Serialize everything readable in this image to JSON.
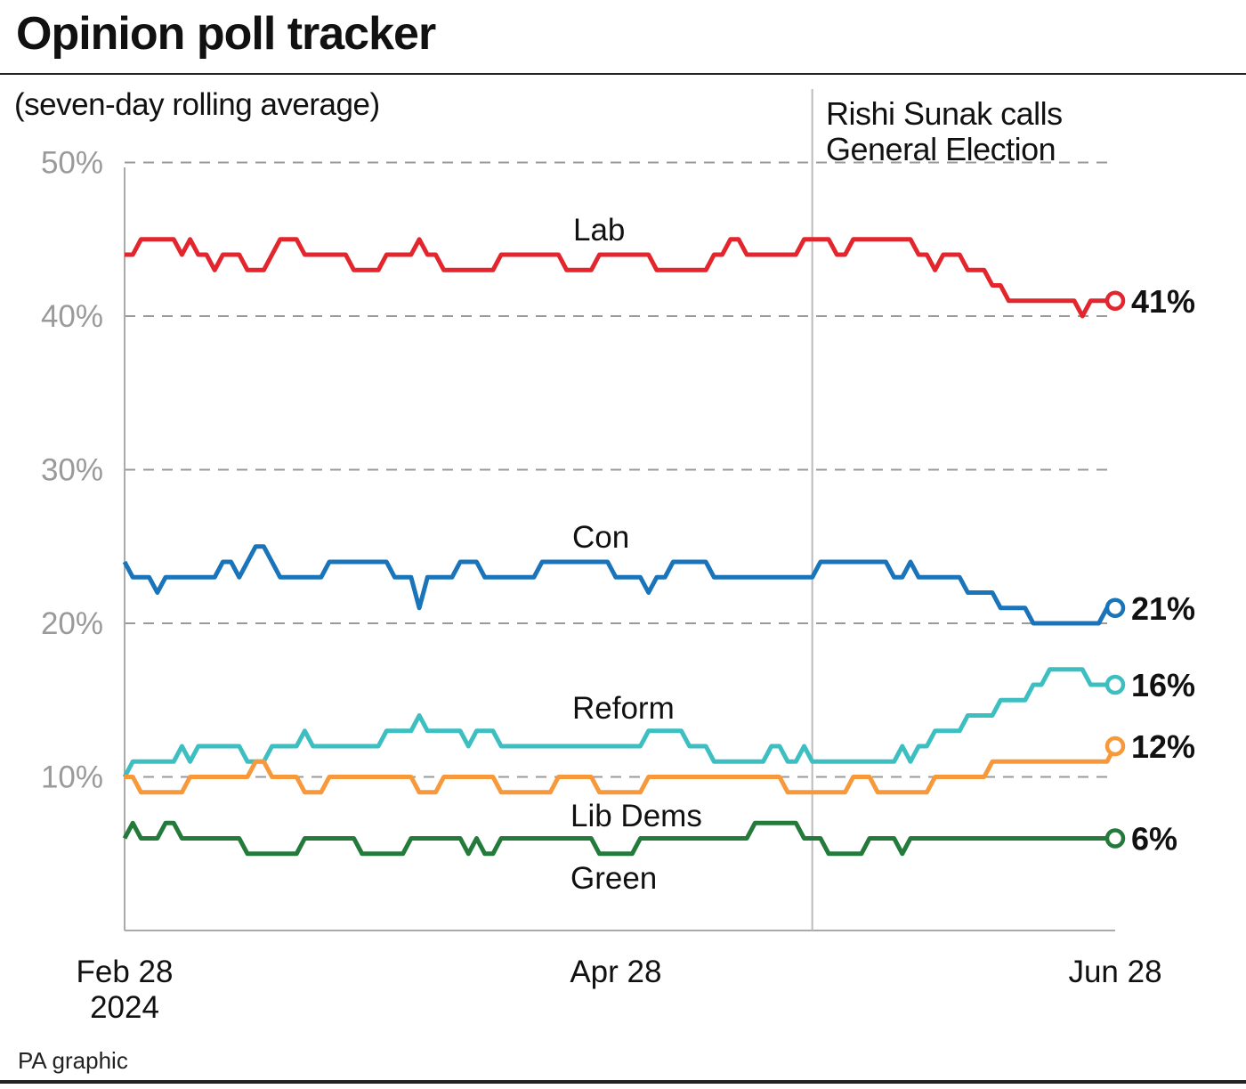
{
  "title": "Opinion poll tracker",
  "subtitle": "(seven-day rolling average)",
  "source": "PA graphic",
  "chart_data": {
    "type": "line",
    "title": "Opinion poll tracker",
    "subtitle": "(seven-day rolling average)",
    "xlabel": "",
    "ylabel": "",
    "ylim": [
      0,
      50
    ],
    "yticks": [
      10,
      20,
      30,
      40,
      50
    ],
    "ytick_labels": [
      "10%",
      "20%",
      "30%",
      "40%",
      "50%"
    ],
    "xlim": [
      "2024-02-28",
      "2024-06-28"
    ],
    "xticks": [
      {
        "date": "2024-02-28",
        "label": [
          "Feb 28",
          "2024"
        ]
      },
      {
        "date": "2024-04-28",
        "label": [
          "Apr 28"
        ]
      },
      {
        "date": "2024-06-28",
        "label": [
          "Jun 28"
        ]
      }
    ],
    "grid": "horizontal dashed",
    "legend": "direct labels on lines",
    "annotation": {
      "date": "2024-05-22",
      "text": [
        "Rishi Sunak calls",
        "General Election"
      ]
    },
    "x": [
      "2024-02-28",
      "2024-02-29",
      "2024-03-01",
      "2024-03-02",
      "2024-03-03",
      "2024-03-04",
      "2024-03-05",
      "2024-03-06",
      "2024-03-07",
      "2024-03-08",
      "2024-03-09",
      "2024-03-10",
      "2024-03-11",
      "2024-03-12",
      "2024-03-13",
      "2024-03-14",
      "2024-03-15",
      "2024-03-16",
      "2024-03-17",
      "2024-03-18",
      "2024-03-19",
      "2024-03-20",
      "2024-03-21",
      "2024-03-22",
      "2024-03-23",
      "2024-03-24",
      "2024-03-25",
      "2024-03-26",
      "2024-03-27",
      "2024-03-28",
      "2024-03-29",
      "2024-03-30",
      "2024-03-31",
      "2024-04-01",
      "2024-04-02",
      "2024-04-03",
      "2024-04-04",
      "2024-04-05",
      "2024-04-06",
      "2024-04-07",
      "2024-04-08",
      "2024-04-09",
      "2024-04-10",
      "2024-04-11",
      "2024-04-12",
      "2024-04-13",
      "2024-04-14",
      "2024-04-15",
      "2024-04-16",
      "2024-04-17",
      "2024-04-18",
      "2024-04-19",
      "2024-04-20",
      "2024-04-21",
      "2024-04-22",
      "2024-04-23",
      "2024-04-24",
      "2024-04-25",
      "2024-04-26",
      "2024-04-27",
      "2024-04-28",
      "2024-04-29",
      "2024-04-30",
      "2024-05-01",
      "2024-05-02",
      "2024-05-03",
      "2024-05-04",
      "2024-05-05",
      "2024-05-06",
      "2024-05-07",
      "2024-05-08",
      "2024-05-09",
      "2024-05-10",
      "2024-05-11",
      "2024-05-12",
      "2024-05-13",
      "2024-05-14",
      "2024-05-15",
      "2024-05-16",
      "2024-05-17",
      "2024-05-18",
      "2024-05-19",
      "2024-05-20",
      "2024-05-21",
      "2024-05-22",
      "2024-05-23",
      "2024-05-24",
      "2024-05-25",
      "2024-05-26",
      "2024-05-27",
      "2024-05-28",
      "2024-05-29",
      "2024-05-30",
      "2024-05-31",
      "2024-06-01",
      "2024-06-02",
      "2024-06-03",
      "2024-06-04",
      "2024-06-05",
      "2024-06-06",
      "2024-06-07",
      "2024-06-08",
      "2024-06-09",
      "2024-06-10",
      "2024-06-11",
      "2024-06-12",
      "2024-06-13",
      "2024-06-14",
      "2024-06-15",
      "2024-06-16",
      "2024-06-17",
      "2024-06-18",
      "2024-06-19",
      "2024-06-20",
      "2024-06-21",
      "2024-06-22",
      "2024-06-23",
      "2024-06-24",
      "2024-06-25",
      "2024-06-26",
      "2024-06-27",
      "2024-06-28"
    ],
    "series": [
      {
        "name": "Lab",
        "color": "#e3262d",
        "end_label": "41%",
        "values": [
          44,
          44,
          45,
          45,
          45,
          45,
          45,
          44,
          45,
          44,
          44,
          43,
          44,
          44,
          44,
          43,
          43,
          43,
          44,
          45,
          45,
          45,
          44,
          44,
          44,
          44,
          44,
          44,
          43,
          43,
          43,
          43,
          44,
          44,
          44,
          44,
          45,
          44,
          44,
          43,
          43,
          43,
          43,
          43,
          43,
          43,
          44,
          44,
          44,
          44,
          44,
          44,
          44,
          44,
          43,
          43,
          43,
          43,
          44,
          44,
          44,
          44,
          44,
          44,
          44,
          43,
          43,
          43,
          43,
          43,
          43,
          43,
          44,
          44,
          45,
          45,
          44,
          44,
          44,
          44,
          44,
          44,
          44,
          45,
          45,
          45,
          45,
          44,
          44,
          45,
          45,
          45,
          45,
          45,
          45,
          45,
          45,
          44,
          44,
          43,
          44,
          44,
          44,
          43,
          43,
          43,
          42,
          42,
          41,
          41,
          41,
          41,
          41,
          41,
          41,
          41,
          41,
          40,
          41,
          41,
          41,
          41
        ]
      },
      {
        "name": "Con",
        "color": "#1a74b9",
        "end_label": "21%",
        "values": [
          24,
          23,
          23,
          23,
          22,
          23,
          23,
          23,
          23,
          23,
          23,
          23,
          24,
          24,
          23,
          24,
          25,
          25,
          24,
          23,
          23,
          23,
          23,
          23,
          23,
          24,
          24,
          24,
          24,
          24,
          24,
          24,
          24,
          23,
          23,
          23,
          21,
          23,
          23,
          23,
          23,
          24,
          24,
          24,
          23,
          23,
          23,
          23,
          23,
          23,
          23,
          24,
          24,
          24,
          24,
          24,
          24,
          24,
          24,
          24,
          23,
          23,
          23,
          23,
          22,
          23,
          23,
          24,
          24,
          24,
          24,
          24,
          23,
          23,
          23,
          23,
          23,
          23,
          23,
          23,
          23,
          23,
          23,
          23,
          23,
          24,
          24,
          24,
          24,
          24,
          24,
          24,
          24,
          24,
          23,
          23,
          24,
          23,
          23,
          23,
          23,
          23,
          23,
          22,
          22,
          22,
          22,
          21,
          21,
          21,
          21,
          20,
          20,
          20,
          20,
          20,
          20,
          20,
          20,
          20,
          21,
          21
        ]
      },
      {
        "name": "Reform",
        "color": "#3dbfc2",
        "end_label": "16%",
        "values": [
          10,
          11,
          11,
          11,
          11,
          11,
          11,
          12,
          11,
          12,
          12,
          12,
          12,
          12,
          12,
          11,
          11,
          11,
          12,
          12,
          12,
          12,
          13,
          12,
          12,
          12,
          12,
          12,
          12,
          12,
          12,
          12,
          13,
          13,
          13,
          13,
          14,
          13,
          13,
          13,
          13,
          13,
          12,
          13,
          13,
          13,
          12,
          12,
          12,
          12,
          12,
          12,
          12,
          12,
          12,
          12,
          12,
          12,
          12,
          12,
          12,
          12,
          12,
          12,
          13,
          13,
          13,
          13,
          13,
          12,
          12,
          12,
          11,
          11,
          11,
          11,
          11,
          11,
          11,
          12,
          12,
          11,
          11,
          12,
          11,
          11,
          11,
          11,
          11,
          11,
          11,
          11,
          11,
          11,
          11,
          12,
          11,
          12,
          12,
          13,
          13,
          13,
          13,
          14,
          14,
          14,
          14,
          15,
          15,
          15,
          15,
          16,
          16,
          17,
          17,
          17,
          17,
          17,
          16,
          16,
          16,
          16
        ]
      },
      {
        "name": "Lib Dems",
        "color": "#f7993a",
        "end_label": "12%",
        "values": [
          10,
          10,
          9,
          9,
          9,
          9,
          9,
          9,
          10,
          10,
          10,
          10,
          10,
          10,
          10,
          10,
          11,
          11,
          10,
          10,
          10,
          10,
          9,
          9,
          9,
          10,
          10,
          10,
          10,
          10,
          10,
          10,
          10,
          10,
          10,
          10,
          9,
          9,
          9,
          10,
          10,
          10,
          10,
          10,
          10,
          10,
          9,
          9,
          9,
          9,
          9,
          9,
          9,
          10,
          10,
          10,
          10,
          10,
          9,
          9,
          9,
          9,
          9,
          9,
          10,
          10,
          10,
          10,
          10,
          10,
          10,
          10,
          10,
          10,
          10,
          10,
          10,
          10,
          10,
          10,
          10,
          9,
          9,
          9,
          9,
          9,
          9,
          9,
          9,
          10,
          10,
          10,
          9,
          9,
          9,
          9,
          9,
          9,
          9,
          10,
          10,
          10,
          10,
          10,
          10,
          10,
          11,
          11,
          11,
          11,
          11,
          11,
          11,
          11,
          11,
          11,
          11,
          11,
          11,
          11,
          11,
          12
        ]
      },
      {
        "name": "Green",
        "color": "#237a3b",
        "end_label": "6%",
        "values": [
          6,
          7,
          6,
          6,
          6,
          7,
          7,
          6,
          6,
          6,
          6,
          6,
          6,
          6,
          6,
          5,
          5,
          5,
          5,
          5,
          5,
          5,
          6,
          6,
          6,
          6,
          6,
          6,
          6,
          5,
          5,
          5,
          5,
          5,
          5,
          6,
          6,
          6,
          6,
          6,
          6,
          6,
          5,
          6,
          5,
          5,
          6,
          6,
          6,
          6,
          6,
          6,
          6,
          6,
          6,
          6,
          6,
          6,
          5,
          5,
          5,
          5,
          5,
          6,
          6,
          6,
          6,
          6,
          6,
          6,
          6,
          6,
          6,
          6,
          6,
          6,
          6,
          7,
          7,
          7,
          7,
          7,
          7,
          6,
          6,
          6,
          5,
          5,
          5,
          5,
          5,
          6,
          6,
          6,
          6,
          5,
          6,
          6,
          6,
          6,
          6,
          6,
          6,
          6,
          6,
          6,
          6,
          6,
          6,
          6,
          6,
          6,
          6,
          6,
          6,
          6,
          6,
          6,
          6,
          6,
          6,
          6
        ]
      }
    ]
  }
}
